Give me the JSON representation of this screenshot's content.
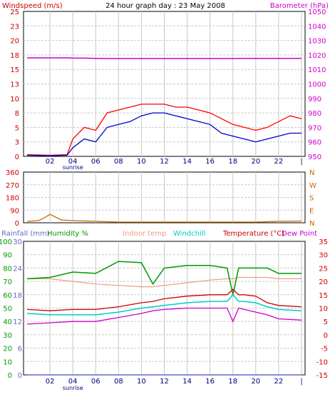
{
  "chart_data": [
    {
      "type": "line",
      "title": "24 hour graph day : 23 May 2008",
      "left_axis_label": "Windspeed (m/s)",
      "right_axis_label": "Barometer (hPa)",
      "colors": {
        "wind_gust": "#ff0000",
        "wind_avg": "#0000cc",
        "barometer": "#cc00cc",
        "axis_left": "#cc0000",
        "axis_right": "#cc00cc",
        "xticks": "#000080"
      },
      "ylim_left": [
        0,
        25
      ],
      "ylim_right": [
        950,
        1050
      ],
      "left_ticks": [
        "0",
        "3",
        "5",
        "8",
        "10",
        "13",
        "15",
        "18",
        "20",
        "23",
        "25"
      ],
      "right_ticks": [
        "950",
        "960",
        "970",
        "980",
        "990",
        "1000",
        "1010",
        "1020",
        "1030",
        "1040",
        "1050"
      ],
      "x_ticks": [
        "02",
        "04",
        "06",
        "08",
        "10",
        "12",
        "14",
        "16",
        "18",
        "20",
        "22",
        "|"
      ],
      "sunrise_label": "sunrise",
      "x_hours": [
        0,
        2,
        3.5,
        4,
        5,
        6,
        7,
        8,
        9,
        10,
        11,
        12,
        13,
        14,
        15,
        16,
        17,
        18,
        19,
        20,
        21,
        22,
        23,
        24
      ],
      "series": [
        {
          "name": "",
          "values": [
            0.2,
            0.1,
            0.2,
            1.5,
            3.0,
            2.5,
            5.0,
            5.5,
            6.0,
            7.0,
            7.5,
            7.5,
            7.0,
            6.5,
            6.0,
            5.5,
            4.0,
            3.5,
            3.0,
            2.5,
            3.0,
            3.5,
            4.0,
            4.0
          ]
        },
        {
          "name": "",
          "values": [
            0.3,
            0.2,
            0.3,
            3.0,
            5.0,
            4.5,
            7.5,
            8.0,
            8.5,
            9.0,
            9.0,
            9.0,
            8.5,
            8.5,
            8.0,
            7.5,
            6.5,
            5.5,
            5.0,
            4.5,
            5.0,
            6.0,
            7.0,
            6.5
          ]
        },
        {
          "name": "",
          "values": [
            1018,
            1018,
            1018,
            1017.8,
            1017.8,
            1017.6,
            1017.5,
            1017.5,
            1017.5,
            1017.5,
            1017.5,
            1017.5,
            1017.5,
            1017.5,
            1017.5,
            1017.5,
            1017.5,
            1017.5,
            1017.6,
            1017.6,
            1017.6,
            1017.6,
            1017.6,
            1017.6
          ]
        }
      ]
    },
    {
      "type": "line",
      "left_ticks": [
        "0",
        "90",
        "180",
        "270",
        "360"
      ],
      "right_ticks": [
        "N",
        "E",
        "S",
        "W",
        "N"
      ],
      "ylim_left": [
        0,
        360
      ],
      "colors": {
        "direction": "#cc6600",
        "axis_left": "#cc0000",
        "axis_right": "#cc6600"
      },
      "x_hours": [
        0,
        1,
        1.5,
        2,
        2.5,
        3,
        4,
        6,
        8,
        10,
        12,
        14,
        16,
        18,
        20,
        22,
        24
      ],
      "series": [
        {
          "name": "",
          "values": [
            10,
            15,
            35,
            60,
            40,
            20,
            15,
            10,
            5,
            5,
            5,
            5,
            5,
            5,
            5,
            10,
            12
          ]
        }
      ]
    },
    {
      "type": "line",
      "legend": [
        "Rainfall (mm)",
        "Humidity %",
        "Indoor temp",
        "Windchill",
        "Temperature (°C)",
        "Dew Point"
      ],
      "colors": {
        "rainfall": "#6666cc",
        "humidity": "#009900",
        "indoor": "#e8a080",
        "windchill": "#00cccc",
        "temperature": "#cc0000",
        "dewpoint": "#cc00cc"
      },
      "rain_ticks": [
        "0",
        "6",
        "12",
        "18",
        "24",
        "30"
      ],
      "humidity_ticks": [
        "0",
        "10",
        "20",
        "30",
        "40",
        "50",
        "60",
        "70",
        "80",
        "90",
        "100"
      ],
      "temp_ticks": [
        "-15",
        "-10",
        "-5",
        "0",
        "5",
        "10",
        "15",
        "20",
        "25",
        "30",
        "35"
      ],
      "ylim_temp": [
        -15,
        35
      ],
      "x_ticks": [
        "02",
        "04",
        "06",
        "08",
        "10",
        "12",
        "14",
        "16",
        "18",
        "20",
        "22",
        "|"
      ],
      "sunrise_label": "sunrise",
      "x_hours": [
        0,
        2,
        4,
        6,
        8,
        10,
        11,
        12,
        14,
        16,
        17.5,
        18,
        18.5,
        19,
        20,
        21,
        22,
        24
      ],
      "series": [
        {
          "name": "Humidity %",
          "values": [
            72,
            73,
            77,
            76,
            85,
            84,
            68,
            80,
            82,
            82,
            80,
            60,
            80,
            80,
            80,
            80,
            76,
            76
          ]
        },
        {
          "name": "Indoor temp",
          "values": [
            21,
            21,
            20,
            19,
            18.5,
            18,
            18,
            18.5,
            19.5,
            20.5,
            21,
            21,
            21.5,
            21.5,
            21.5,
            21.5,
            21,
            21
          ]
        },
        {
          "name": "Temperature (°C)",
          "values": [
            9.5,
            9,
            9.5,
            9.5,
            10.5,
            12,
            12.5,
            13.5,
            14.5,
            15,
            15,
            17,
            15,
            15,
            14.5,
            12,
            11,
            10.5
          ]
        },
        {
          "name": "Windchill",
          "values": [
            8,
            7.5,
            7.5,
            7.5,
            8.5,
            10,
            10.5,
            11,
            12,
            12.5,
            12.5,
            15,
            12.5,
            12.5,
            12,
            10.5,
            9.5,
            9
          ]
        },
        {
          "name": "Dew Point",
          "values": [
            4,
            4.5,
            5,
            5,
            6.5,
            8,
            9,
            9.5,
            10,
            10,
            10,
            5,
            10,
            9.5,
            8.5,
            7.5,
            6,
            5.5
          ]
        },
        {
          "name": "Rainfall (mm)",
          "values": [
            0,
            0,
            0,
            0,
            0,
            0,
            0,
            0,
            0,
            0,
            0,
            0,
            0,
            0,
            0,
            0,
            0,
            0
          ]
        }
      ]
    }
  ]
}
